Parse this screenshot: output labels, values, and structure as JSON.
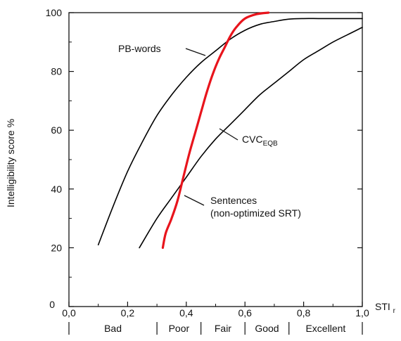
{
  "chart_data": {
    "type": "line",
    "title": "",
    "xlabel": "STI",
    "xlabel_subscript": "r",
    "ylabel": "Intelligibility score  %",
    "xlim": [
      0,
      1
    ],
    "ylim": [
      0,
      100
    ],
    "x_ticks": [
      0,
      0.2,
      0.4,
      0.6,
      0.8,
      1.0
    ],
    "x_tick_labels": [
      "0,0",
      "0,2",
      "0,4",
      "0,6",
      "0,8",
      "1,0"
    ],
    "y_ticks": [
      0,
      20,
      40,
      60,
      80,
      100
    ],
    "y_tick_labels": [
      "0",
      "20",
      "40",
      "60",
      "80",
      "100"
    ],
    "grid": false,
    "series": [
      {
        "name": "PB-words",
        "color": "#000000",
        "x": [
          0.1,
          0.15,
          0.2,
          0.25,
          0.3,
          0.35,
          0.4,
          0.45,
          0.5,
          0.55,
          0.6,
          0.65,
          0.7,
          0.75,
          0.8,
          0.85,
          0.9,
          0.95,
          1.0
        ],
        "y": [
          21,
          34,
          46,
          56,
          65,
          72,
          78,
          83,
          87,
          91,
          94,
          96,
          97,
          97.8,
          98,
          98,
          98,
          98,
          98
        ]
      },
      {
        "name": "CVC",
        "name_subscript": "EQB",
        "color": "#000000",
        "x": [
          0.24,
          0.3,
          0.35,
          0.4,
          0.45,
          0.5,
          0.55,
          0.6,
          0.65,
          0.7,
          0.75,
          0.8,
          0.85,
          0.9,
          0.95,
          1.0
        ],
        "y": [
          20,
          30,
          37,
          44,
          51,
          57,
          62,
          67,
          72,
          76,
          80,
          84,
          87,
          90,
          92.5,
          95
        ]
      },
      {
        "name": "Sentences\n(non-optimized SRT)",
        "color": "#e8141c",
        "x": [
          0.32,
          0.33,
          0.35,
          0.37,
          0.39,
          0.41,
          0.43,
          0.45,
          0.47,
          0.49,
          0.51,
          0.53,
          0.55,
          0.57,
          0.6,
          0.64,
          0.68
        ],
        "y": [
          20,
          25,
          30,
          36,
          44,
          52,
          59,
          66,
          73,
          79,
          84,
          88,
          92,
          95,
          98,
          99.5,
          100
        ]
      }
    ],
    "annotations": [
      {
        "text": "PB-words",
        "series": 0
      },
      {
        "text": "CVC",
        "subscript": "EQB",
        "series": 1
      },
      {
        "text": "Sentences",
        "text2": "(non-optimized SRT)",
        "series": 2
      }
    ],
    "bands": [
      {
        "label": "Bad",
        "from": 0.0,
        "to": 0.3
      },
      {
        "label": "Poor",
        "from": 0.3,
        "to": 0.45
      },
      {
        "label": "Fair",
        "from": 0.45,
        "to": 0.6
      },
      {
        "label": "Good",
        "from": 0.6,
        "to": 0.75
      },
      {
        "label": "Excellent",
        "from": 0.75,
        "to": 1.0
      }
    ]
  }
}
